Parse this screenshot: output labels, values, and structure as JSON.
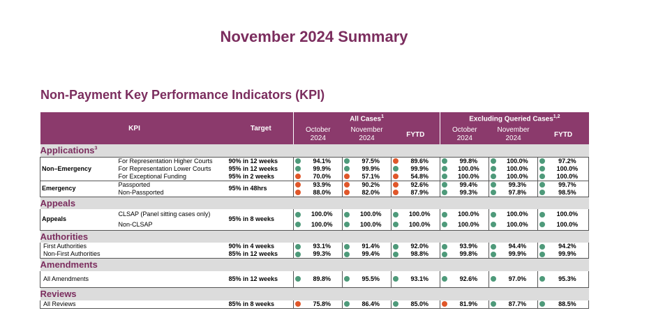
{
  "title": "November 2024 Summary",
  "section_title": "Non-Payment Key Performance Indicators (KPI)",
  "colors": {
    "title": "#7b2d5e",
    "header_bg": "#8b3a6c",
    "category_bg": "#dcdcdc",
    "green": "#4e9a7a",
    "red": "#e0572a"
  },
  "header": {
    "kpi": "KPI",
    "target": "Target",
    "all_cases": "All Cases",
    "all_cases_sup": "1",
    "excl": "Excluding Queried Cases",
    "excl_sup": "1,2",
    "oct": "October",
    "nov": "November",
    "year": "2024",
    "fytd": "FYTD"
  },
  "categories": {
    "applications": "Applications",
    "applications_sup": "3",
    "appeals": "Appeals",
    "authorities": "Authorities",
    "amendments": "Amendments",
    "reviews": "Reviews"
  },
  "groups": {
    "non_emergency": "Non–Emergency",
    "emergency": "Emergency",
    "appeals": "Appeals"
  },
  "rows": [
    {
      "kpi": "For Representation Higher Courts",
      "target": "90% in 12 weeks",
      "values": [
        "94.1%",
        "97.5%",
        "89.6%",
        "99.8%",
        "100.0%",
        "97.2%"
      ],
      "status": [
        "green",
        "green",
        "red",
        "green",
        "green",
        "green"
      ]
    },
    {
      "kpi": "For Representation Lower Courts",
      "target": "95% in 12 weeks",
      "values": [
        "99.9%",
        "99.9%",
        "99.9%",
        "100.0%",
        "100.0%",
        "100.0%"
      ],
      "status": [
        "green",
        "green",
        "green",
        "green",
        "green",
        "green"
      ]
    },
    {
      "kpi": "For Exceptional Funding",
      "target": "95% in 2 weeks",
      "values": [
        "70.0%",
        "57.1%",
        "54.8%",
        "100.0%",
        "100.0%",
        "100.0%"
      ],
      "status": [
        "red",
        "red",
        "red",
        "green",
        "green",
        "green"
      ]
    },
    {
      "kpi": "Passported",
      "target": "95% in 48hrs",
      "values": [
        "93.9%",
        "90.2%",
        "92.6%",
        "99.4%",
        "99.3%",
        "99.7%"
      ],
      "status": [
        "red",
        "red",
        "red",
        "green",
        "green",
        "green"
      ]
    },
    {
      "kpi": "Non-Passported",
      "target": "",
      "values": [
        "88.0%",
        "82.0%",
        "87.9%",
        "99.3%",
        "97.8%",
        "98.5%"
      ],
      "status": [
        "red",
        "red",
        "red",
        "green",
        "green",
        "green"
      ]
    },
    {
      "kpi": "CLSAP (Panel sitting cases only)",
      "target": "95% in 8 weeks",
      "values": [
        "100.0%",
        "100.0%",
        "100.0%",
        "100.0%",
        "100.0%",
        "100.0%"
      ],
      "status": [
        "green",
        "green",
        "green",
        "green",
        "green",
        "green"
      ]
    },
    {
      "kpi": "Non-CLSAP",
      "target": "",
      "values": [
        "100.0%",
        "100.0%",
        "100.0%",
        "100.0%",
        "100.0%",
        "100.0%"
      ],
      "status": [
        "green",
        "green",
        "green",
        "green",
        "green",
        "green"
      ]
    },
    {
      "kpi": "First Authorities",
      "target": "90% in 4 weeks",
      "values": [
        "93.1%",
        "91.4%",
        "92.0%",
        "93.9%",
        "94.4%",
        "94.2%"
      ],
      "status": [
        "green",
        "green",
        "green",
        "green",
        "green",
        "green"
      ]
    },
    {
      "kpi": "Non-First Authorities",
      "target": "85% in 12 weeks",
      "values": [
        "99.3%",
        "99.4%",
        "98.8%",
        "99.8%",
        "99.9%",
        "99.9%"
      ],
      "status": [
        "green",
        "green",
        "green",
        "green",
        "green",
        "green"
      ]
    },
    {
      "kpi": "All Amendments",
      "target": "85% in 12 weeks",
      "values": [
        "89.8%",
        "95.5%",
        "93.1%",
        "92.6%",
        "97.0%",
        "95.3%"
      ],
      "status": [
        "green",
        "green",
        "green",
        "green",
        "green",
        "green"
      ]
    },
    {
      "kpi": "All Reviews",
      "target": "85% in 8 weeks",
      "values": [
        "75.8%",
        "86.4%",
        "85.0%",
        "81.9%",
        "87.7%",
        "88.5%"
      ],
      "status": [
        "red",
        "green",
        "green",
        "red",
        "green",
        "green"
      ]
    }
  ]
}
